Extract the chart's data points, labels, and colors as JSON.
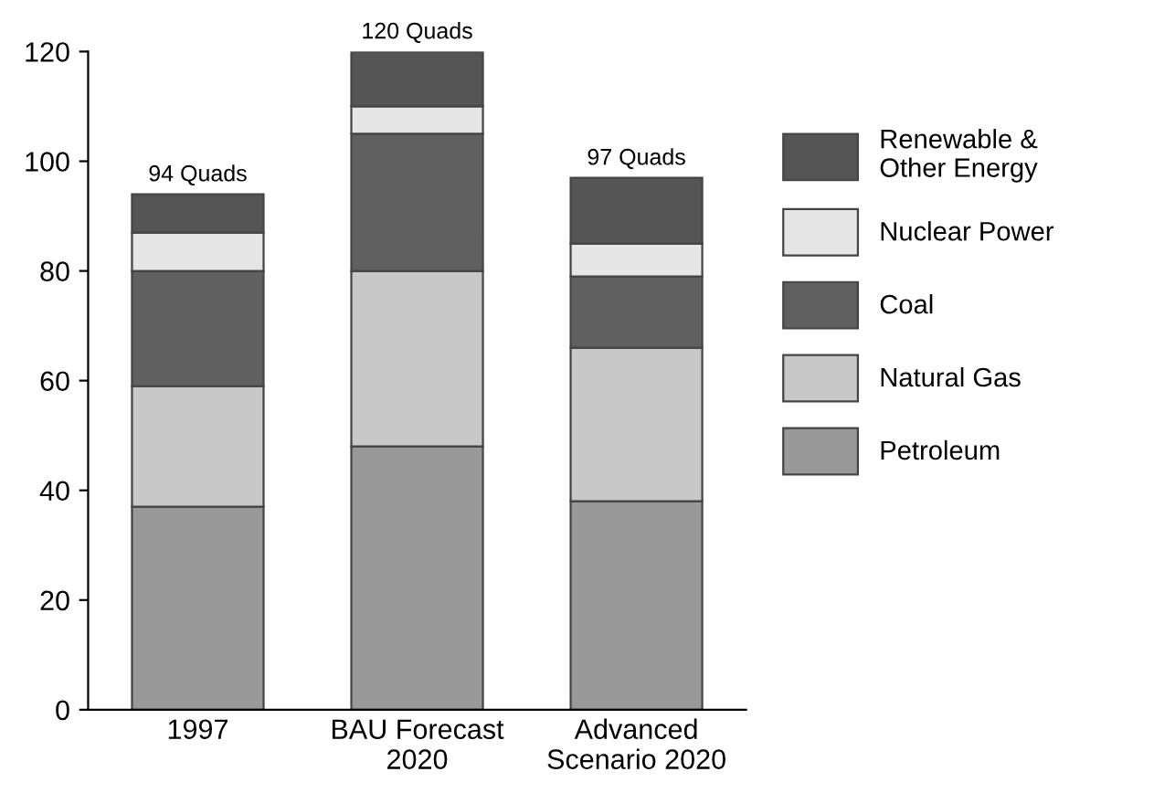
{
  "chart_data": {
    "type": "bar",
    "stacked": true,
    "categories": [
      "1997",
      "BAU Forecast\n2020",
      "Advanced\nScenario 2020"
    ],
    "series": [
      {
        "name": "Petroleum",
        "color": "#999999",
        "values": [
          37,
          48,
          38
        ]
      },
      {
        "name": "Natural Gas",
        "color": "#c8c8c8",
        "values": [
          22,
          32,
          28
        ]
      },
      {
        "name": "Coal",
        "color": "#606060",
        "values": [
          21,
          25,
          13
        ]
      },
      {
        "name": "Nuclear Power",
        "color": "#e6e6e6",
        "values": [
          7,
          5,
          6
        ]
      },
      {
        "name": "Renewable & Other Energy",
        "color": "#555555",
        "values": [
          7,
          10,
          12
        ]
      }
    ],
    "totals": [
      "94 Quads",
      "120 Quads",
      "97 Quads"
    ],
    "ylim": [
      0,
      120
    ],
    "yticks": [
      0,
      20,
      40,
      60,
      80,
      100,
      120
    ],
    "grid": false,
    "legend": "right"
  }
}
